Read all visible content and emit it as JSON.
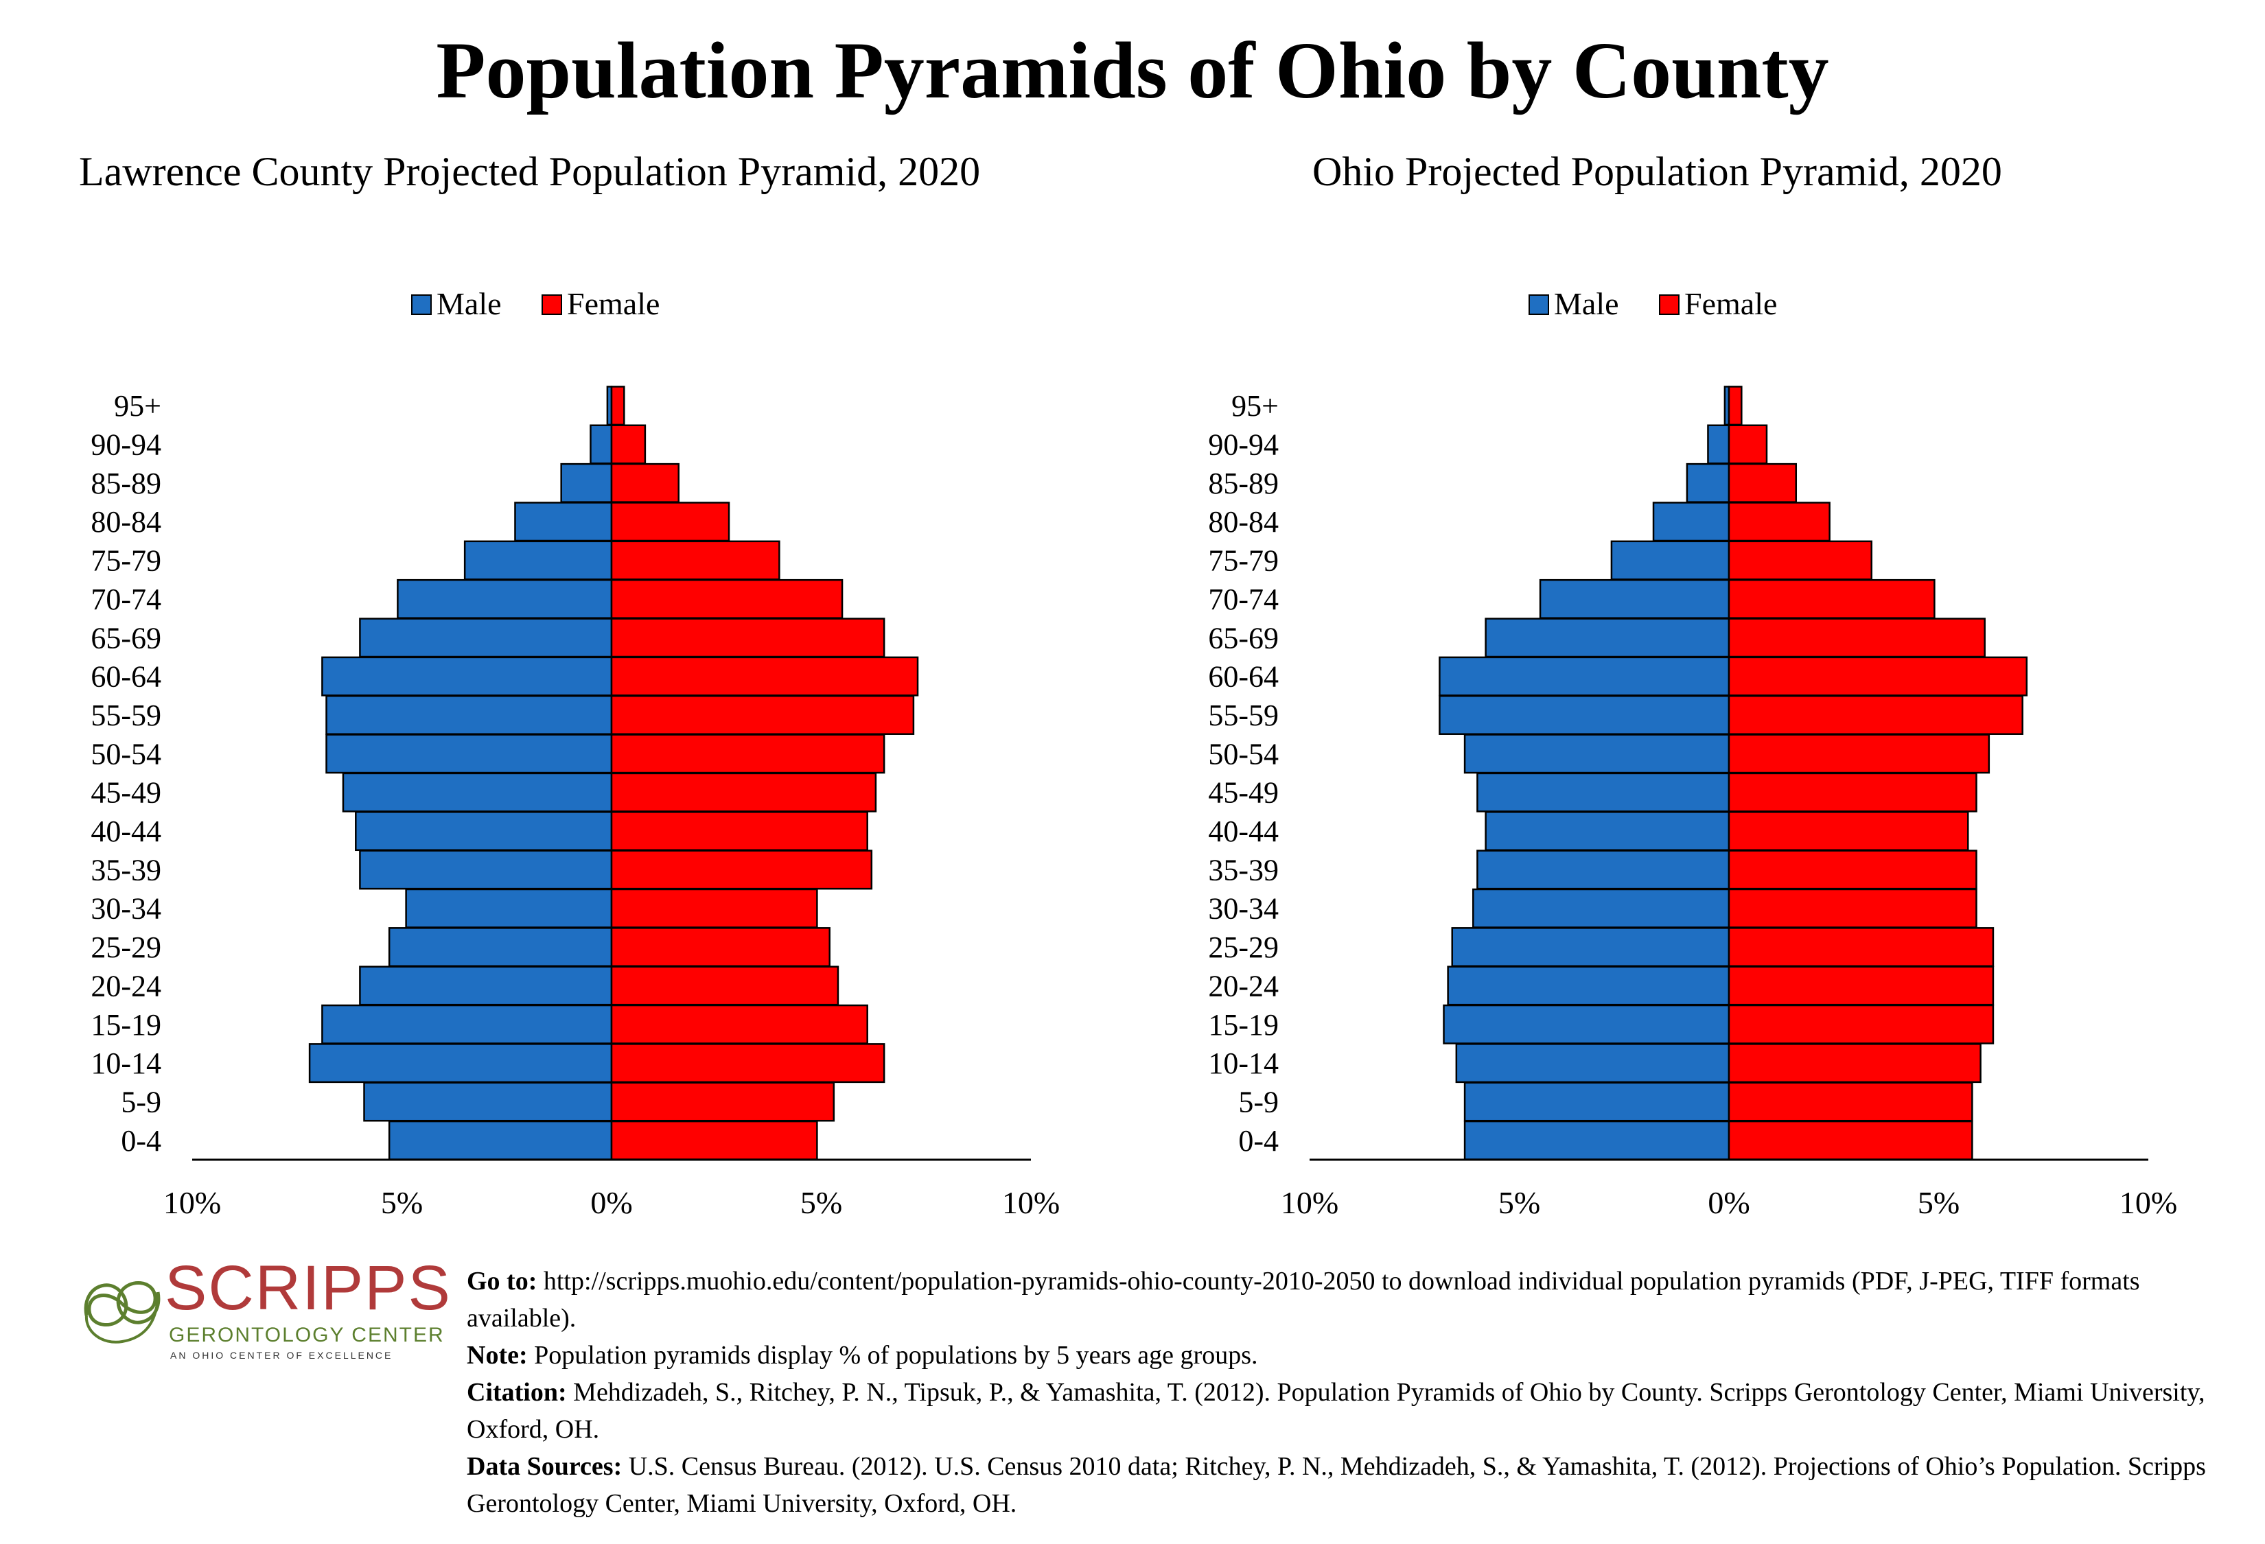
{
  "title": "Population Pyramids of Ohio by County",
  "colors": {
    "male": "#1f6fc2",
    "female": "#ff0000"
  },
  "chart_data": [
    {
      "type": "bar",
      "orientation": "horizontal-pyramid",
      "title": "Lawrence County Projected Population Pyramid, 2020",
      "legend": [
        "Male",
        "Female"
      ],
      "legend_position": "top-center",
      "categories": [
        "95+",
        "90-94",
        "85-89",
        "80-84",
        "75-79",
        "70-74",
        "65-69",
        "60-64",
        "55-59",
        "50-54",
        "45-49",
        "40-44",
        "35-39",
        "30-34",
        "25-29",
        "20-24",
        "15-19",
        "10-14",
        "5-9",
        "0-4"
      ],
      "series": [
        {
          "name": "Male",
          "values": [
            0.1,
            0.5,
            1.2,
            2.3,
            3.5,
            5.1,
            6.0,
            6.9,
            6.8,
            6.8,
            6.4,
            6.1,
            6.0,
            4.9,
            5.3,
            6.0,
            6.9,
            7.2,
            5.9,
            5.3
          ]
        },
        {
          "name": "Female",
          "values": [
            0.3,
            0.8,
            1.6,
            2.8,
            4.0,
            5.5,
            6.5,
            7.3,
            7.2,
            6.5,
            6.3,
            6.1,
            6.2,
            4.9,
            5.2,
            5.4,
            6.1,
            6.5,
            5.3,
            4.9
          ]
        }
      ],
      "xlim": [
        -10,
        10
      ],
      "x_ticks": [
        "10%",
        "5%",
        "0%",
        "5%",
        "10%"
      ]
    },
    {
      "type": "bar",
      "orientation": "horizontal-pyramid",
      "title": "Ohio Projected Population Pyramid, 2020",
      "legend": [
        "Male",
        "Female"
      ],
      "legend_position": "top-center",
      "categories": [
        "95+",
        "90-94",
        "85-89",
        "80-84",
        "75-79",
        "70-74",
        "65-69",
        "60-64",
        "55-59",
        "50-54",
        "45-49",
        "40-44",
        "35-39",
        "30-34",
        "25-29",
        "20-24",
        "15-19",
        "10-14",
        "5-9",
        "0-4"
      ],
      "series": [
        {
          "name": "Male",
          "values": [
            0.1,
            0.5,
            1.0,
            1.8,
            2.8,
            4.5,
            5.8,
            6.9,
            6.9,
            6.3,
            6.0,
            5.8,
            6.0,
            6.1,
            6.6,
            6.7,
            6.8,
            6.5,
            6.3,
            6.3
          ]
        },
        {
          "name": "Female",
          "values": [
            0.3,
            0.9,
            1.6,
            2.4,
            3.4,
            4.9,
            6.1,
            7.1,
            7.0,
            6.2,
            5.9,
            5.7,
            5.9,
            5.9,
            6.3,
            6.3,
            6.3,
            6.0,
            5.8,
            5.8
          ]
        }
      ],
      "xlim": [
        -10,
        10
      ],
      "x_ticks": [
        "10%",
        "5%",
        "0%",
        "5%",
        "10%"
      ]
    }
  ],
  "logo": {
    "name": "SCRIPPS",
    "subtitle": "GERONTOLOGY CENTER",
    "tagline": "AN OHIO CENTER OF EXCELLENCE"
  },
  "notes": {
    "goto_label": "Go to:",
    "goto_text": "http://scripps.muohio.edu/content/population-pyramids-ohio-county-2010-2050 to download individual population pyramids (PDF, J-PEG, TIFF formats available).",
    "note_label": "Note:",
    "note_text": "Population pyramids display % of populations by 5 years age groups.",
    "citation_label": "Citation:",
    "citation_text": "Mehdizadeh, S., Ritchey, P. N., Tipsuk, P., & Yamashita, T. (2012). Population Pyramids of Ohio by County. Scripps Gerontology Center, Miami University, Oxford, OH.",
    "sources_label": "Data Sources:",
    "sources_text": "U.S. Census Bureau. (2012). U.S. Census 2010 data; Ritchey, P. N., Mehdizadeh, S., & Yamashita, T. (2012). Projections of Ohio’s Population. Scripps Gerontology Center, Miami University, Oxford, OH."
  }
}
